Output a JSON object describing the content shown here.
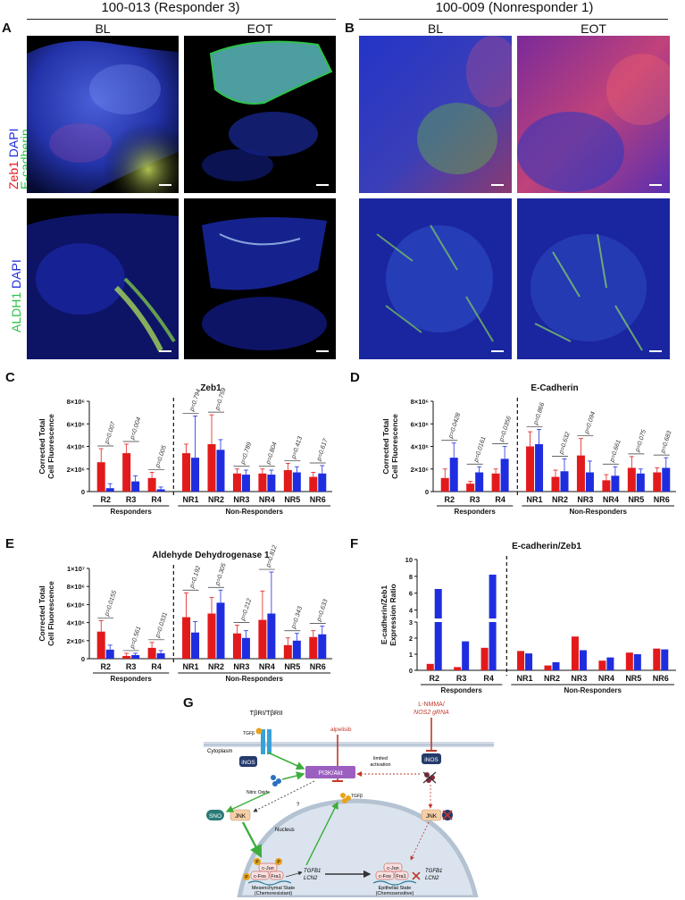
{
  "figure": {
    "group_left": "100-013 (Responder 3)",
    "group_right": "100-009 (Nonresponder 1)",
    "panel_A": "A",
    "panel_B": "B",
    "panel_C": "C",
    "panel_D": "D",
    "panel_E": "E",
    "panel_F": "F",
    "panel_G": "G",
    "col_bl": "BL",
    "col_eot": "EOT",
    "row1_label": {
      "red": "Zeb1",
      "blue": "DAPI",
      "green": "E-cadherin"
    },
    "row2_label": {
      "green": "ALDH1",
      "blue": "DAPI"
    },
    "scale_bar": "100 µm",
    "colors": {
      "red": "#e31a1c",
      "blue": "#1f2de0",
      "green": "#2ec24a"
    }
  },
  "chart_data": [
    {
      "id": "C",
      "type": "bar",
      "title": "Zeb1",
      "ylabel": "Corrected Total Cell Fluorescence",
      "ylim": [
        0,
        8000000
      ],
      "yticks": [
        "0",
        "2×10⁶",
        "4×10⁶",
        "6×10⁶",
        "8×10⁶"
      ],
      "categories": [
        "R2",
        "R3",
        "R4",
        "NR1",
        "NR2",
        "NR3",
        "NR4",
        "NR5",
        "NR6"
      ],
      "groups": [
        "Responders",
        "Non-Responders"
      ],
      "series": [
        {
          "color": "#e31a1c",
          "values": [
            2600000,
            3400000,
            1200000,
            3400000,
            4200000,
            1600000,
            1600000,
            1900000,
            1300000
          ],
          "err": [
            1200000,
            800000,
            500000,
            800000,
            2600000,
            400000,
            400000,
            600000,
            400000
          ]
        },
        {
          "color": "#1f2de0",
          "values": [
            300000,
            900000,
            200000,
            3000000,
            3700000,
            1500000,
            1500000,
            1700000,
            1600000
          ],
          "err": [
            400000,
            500000,
            200000,
            3700000,
            900000,
            400000,
            400000,
            500000,
            700000
          ]
        }
      ],
      "pvalues": [
        "p=0.007",
        "p=0.004",
        "p=0.005",
        "p=0.794",
        "p=0.759",
        "p=0.789",
        "p=0.804",
        "p=0.413",
        "p=0.617"
      ]
    },
    {
      "id": "D",
      "type": "bar",
      "title": "E-Cadherin",
      "ylabel": "Corrected Total Cell Fluorescence",
      "ylim": [
        0,
        8000000
      ],
      "yticks": [
        "0",
        "2×10⁶",
        "4×10⁶",
        "6×10⁶",
        "8×10⁶"
      ],
      "categories": [
        "R2",
        "R3",
        "R4",
        "NR1",
        "NR2",
        "NR3",
        "NR4",
        "NR5",
        "NR6"
      ],
      "groups": [
        "Responders",
        "Non-Responders"
      ],
      "series": [
        {
          "color": "#e31a1c",
          "values": [
            1200000,
            700000,
            1600000,
            4000000,
            1300000,
            3200000,
            1000000,
            2100000,
            1700000
          ],
          "err": [
            800000,
            200000,
            400000,
            1300000,
            600000,
            1500000,
            500000,
            1000000,
            400000
          ]
        },
        {
          "color": "#1f2de0",
          "values": [
            3000000,
            1700000,
            2900000,
            4200000,
            1800000,
            1700000,
            1400000,
            1600000,
            2100000
          ],
          "err": [
            1300000,
            500000,
            1100000,
            1300000,
            1100000,
            1000000,
            800000,
            400000,
            900000
          ]
        }
      ],
      "pvalues": [
        "p=0.0428",
        "p=0.0161",
        "p=0.0356",
        "p=0.866",
        "p=0.632",
        "p=0.094",
        "p=0.661",
        "p=0.075",
        "p=0.683"
      ]
    },
    {
      "id": "E",
      "type": "bar",
      "title": "Aldehyde Dehydrogenase 1",
      "ylabel": "Corrected Total Cell Fluorescence",
      "ylim": [
        0,
        10000000
      ],
      "yticks": [
        "0",
        "2×10⁶",
        "4×10⁶",
        "6×10⁶",
        "8×10⁶",
        "1×10⁷"
      ],
      "categories": [
        "R2",
        "R3",
        "R4",
        "NR1",
        "NR2",
        "NR3",
        "NR4",
        "NR5",
        "NR6"
      ],
      "groups": [
        "Responders",
        "Non-Responders"
      ],
      "series": [
        {
          "color": "#e31a1c",
          "values": [
            3000000,
            300000,
            1200000,
            4600000,
            5000000,
            2800000,
            4300000,
            1500000,
            2400000
          ],
          "err": [
            1200000,
            300000,
            600000,
            2700000,
            1800000,
            900000,
            3200000,
            800000,
            700000
          ]
        },
        {
          "color": "#1f2de0",
          "values": [
            1000000,
            400000,
            600000,
            2900000,
            6200000,
            2300000,
            5000000,
            2000000,
            2700000
          ],
          "err": [
            500000,
            200000,
            300000,
            1200000,
            1400000,
            800000,
            4600000,
            800000,
            900000
          ]
        }
      ],
      "pvalues": [
        "p=0.0155",
        "p=0.561",
        "p=0.0331",
        "p=0.192",
        "p=0.305",
        "p=0.212",
        "p=0.812",
        "p=0.343",
        "p=0.633"
      ]
    },
    {
      "id": "F",
      "type": "bar",
      "title": "E-cadherin/Zeb1",
      "ylabel": "E-cadherin/Zeb1 Expression Ratio",
      "ylim": [
        0,
        10
      ],
      "yticks": [
        "0",
        "1",
        "2",
        "3",
        "4",
        "6",
        "8",
        "10"
      ],
      "categories": [
        "R2",
        "R3",
        "R4",
        "NR1",
        "NR2",
        "NR3",
        "NR4",
        "NR5",
        "NR6"
      ],
      "groups": [
        "Responders",
        "Non-Responders"
      ],
      "series": [
        {
          "color": "#e31a1c",
          "values": [
            0.4,
            0.2,
            1.4,
            1.2,
            0.3,
            2.1,
            0.6,
            1.1,
            1.35
          ]
        },
        {
          "color": "#1f2de0",
          "values": [
            6.5,
            1.8,
            8.2,
            1.05,
            0.5,
            1.25,
            0.8,
            1.0,
            1.3
          ]
        }
      ]
    }
  ],
  "diagram": {
    "receptor": "TβRI/TβRII",
    "tgfb": "TGFβ",
    "cytoplasm": "Cytoplasm",
    "nucleus": "Nucleus",
    "alpelisib": "alpelisib",
    "inhibitor_line1": "L-NMMA/",
    "inhibitor_line2": "NOS2 gRNA",
    "inos_left": "iNOS",
    "inos_right": "iNOS",
    "nitric_oxide": "Nitric Oxide",
    "pi3k": "PI3K/Akt",
    "limited1": "limited",
    "limited2": "activation",
    "question": "?",
    "sno": "SNO",
    "jnk_left": "JNK",
    "jnk_right": "JNK",
    "p_mark": "P",
    "cjun": "c-Jun",
    "cfos": "c-Fos",
    "fra1": "Fra1",
    "tgfb1": "TGFB1",
    "lcn2": "LCN2",
    "mes1": "Mesenchymal State",
    "mes2": "(Chemoresistant)",
    "epi1": "Epithelial State",
    "epi2": "(Chemosensitive)",
    "colors": {
      "green_arrow": "#3cae3c",
      "inhibit_red": "#c0392b",
      "pi3k_purple": "#9b5fc0",
      "inos_navy": "#253a6b",
      "sno_teal": "#2b7a78",
      "jnk_peach": "#f6cfa8"
    }
  }
}
